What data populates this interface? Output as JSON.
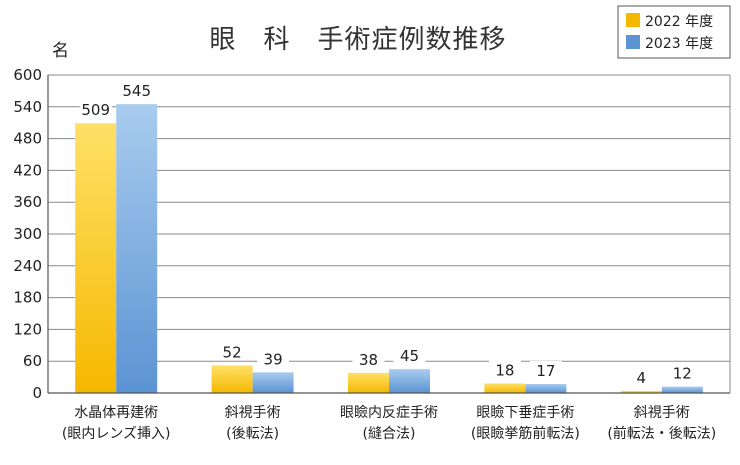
{
  "chart_data": {
    "type": "bar",
    "title": "眼　科　手術症例数推移",
    "ylabel": "名",
    "ylim": [
      0,
      600
    ],
    "yticks": [
      0,
      60,
      120,
      180,
      240,
      300,
      360,
      420,
      480,
      540,
      600
    ],
    "grid": true,
    "legend_position": "top-right",
    "categories": [
      [
        "水晶体再建術",
        "(眼内レンズ挿入)"
      ],
      [
        "斜視手術",
        "(後転法)"
      ],
      [
        "眼瞼内反症手術",
        "(縫合法)"
      ],
      [
        "眼瞼下垂症手術",
        "(眼瞼挙筋前転法)"
      ],
      [
        "斜視手術",
        "(前転法・後転法)"
      ]
    ],
    "series": [
      {
        "name": "2022 年度",
        "values": [
          509,
          52,
          38,
          18,
          4
        ],
        "color": "#f5b800",
        "color_light": "#ffe066"
      },
      {
        "name": "2023 年度",
        "values": [
          545,
          39,
          45,
          17,
          12
        ],
        "color": "#5b93d3",
        "color_light": "#a9ccef"
      }
    ]
  }
}
